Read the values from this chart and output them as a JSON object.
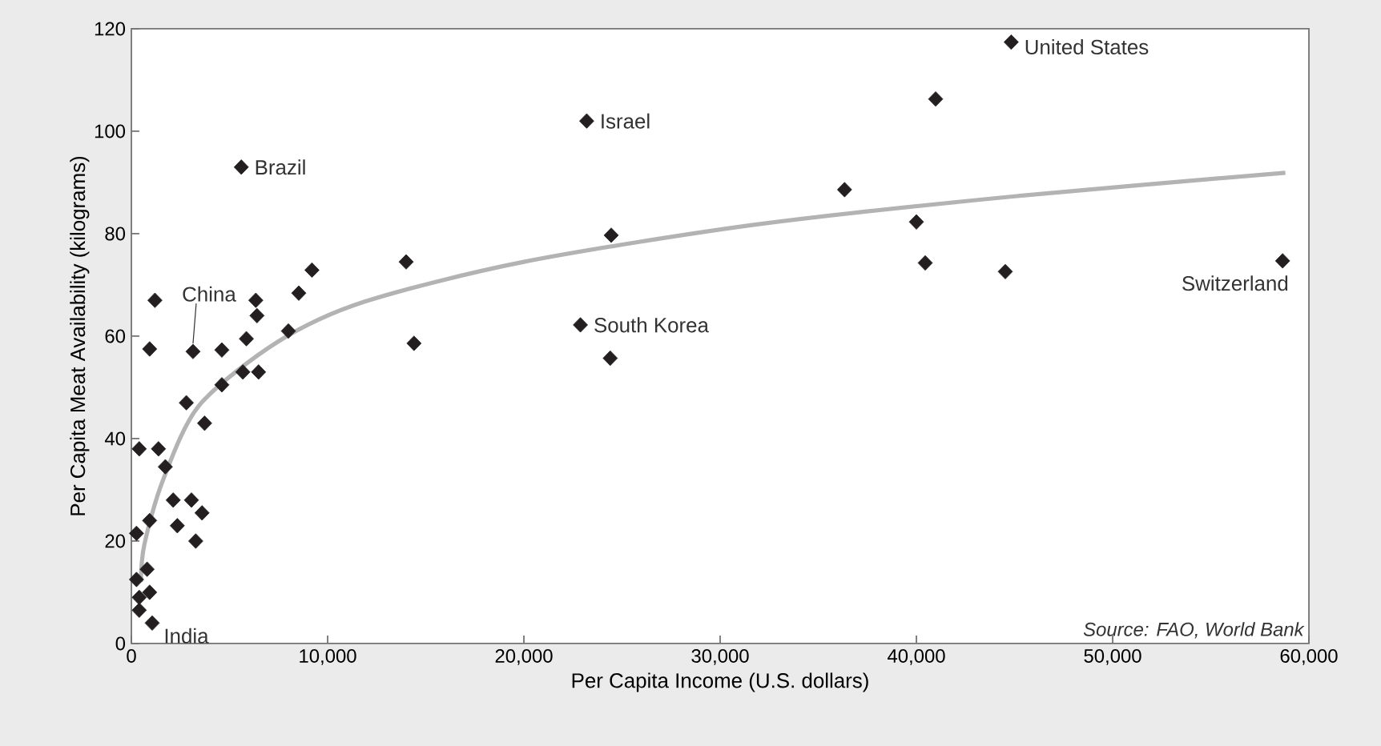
{
  "chart_data": {
    "type": "scatter",
    "xlabel": "Per Capita Income (U.S. dollars)",
    "ylabel": "Per Capita Meat Availability (kilograms)",
    "xlim": [
      0,
      60000
    ],
    "ylim": [
      0,
      120
    ],
    "xticks": [
      0,
      {
        "value": 10000,
        "label": "10,000"
      },
      {
        "value": 20000,
        "label": "20,000"
      },
      {
        "value": 30000,
        "label": "30,000"
      },
      {
        "value": 40000,
        "label": "40,000"
      },
      {
        "value": 50000,
        "label": "50,000"
      },
      {
        "value": 60000,
        "label": "60,000"
      }
    ],
    "yticks": [
      0,
      20,
      40,
      60,
      80,
      100,
      120
    ],
    "series": [
      {
        "marker": "diamond",
        "color": "#231f20",
        "x": [
          1200,
          930,
          3140,
          4610,
          5860,
          6340,
          6400,
          8530,
          9200,
          8000,
          4610,
          5680,
          6480,
          2800,
          3730,
          400,
          1380,
          1730,
          2130,
          3060,
          3600,
          2340,
          3280,
          930,
          260,
          800,
          260,
          930,
          400,
          400,
          1060,
          14000,
          5600,
          23200,
          24450,
          14400,
          22880,
          24400,
          44830,
          40980,
          36340,
          40000,
          40450,
          44530,
          58660
        ],
        "values": [
          67,
          57.5,
          57,
          57.3,
          59.5,
          67,
          64,
          68.4,
          72.9,
          61,
          50.5,
          53,
          53,
          47,
          43,
          38,
          38,
          34.5,
          28,
          28,
          25.5,
          23,
          20,
          24,
          21.5,
          14.5,
          12.5,
          10,
          9,
          6.5,
          4,
          74.5,
          93,
          102,
          79.7,
          58.6,
          62.2,
          55.7,
          117.4,
          106.3,
          88.6,
          82.3,
          74.3,
          72.6,
          74.7
        ]
      },
      {
        "type": "line",
        "marker": "none",
        "color": "#b3b3b3",
        "x": [
          480,
          660,
          1600,
          3460,
          7460,
          11860,
          20000,
          31860,
          45000,
          58800
        ],
        "values": [
          12,
          19.3,
          31.8,
          46.5,
          58.9,
          66.7,
          74.5,
          81.8,
          87.3,
          91.9
        ]
      }
    ],
    "annotations": [
      {
        "text": "Brazil",
        "x": 5600,
        "y": 93
      },
      {
        "text": "China",
        "x": 3140,
        "y": 57
      },
      {
        "text": "India",
        "x": 1060,
        "y": 4
      },
      {
        "text": "Israel",
        "x": 23200,
        "y": 102
      },
      {
        "text": "South Korea",
        "x": 22880,
        "y": 62.2
      },
      {
        "text": "United States",
        "x": 44830,
        "y": 117.4
      },
      {
        "text": "Switzerland",
        "x": 58660,
        "y": 74.7
      },
      "Source: FAO, World Bank"
    ]
  }
}
